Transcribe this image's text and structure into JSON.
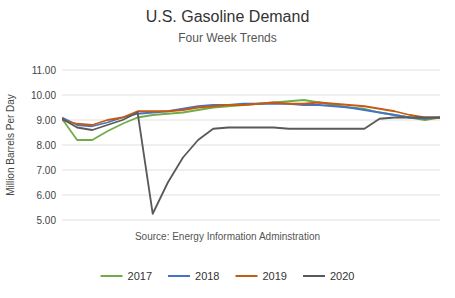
{
  "chart_data": {
    "type": "line",
    "title": "U.S. Gasoline Demand",
    "subtitle": "Four Week Trends",
    "y_label": "Million Barrels Per Day",
    "annotations": [
      "Source: Energy Information Adminstration"
    ],
    "categories": [
      null,
      null,
      null,
      null,
      null,
      null,
      null,
      null,
      null,
      null,
      null,
      null,
      null,
      null,
      null,
      null,
      null,
      null,
      null,
      null,
      null,
      null,
      null,
      null,
      null,
      null
    ],
    "series": [
      {
        "name": "2017",
        "color": "#70ad47",
        "values": [
          9.05,
          8.2,
          8.2,
          8.55,
          8.85,
          9.1,
          9.2,
          9.25,
          9.3,
          9.4,
          9.5,
          9.55,
          9.6,
          9.65,
          9.7,
          9.75,
          9.8,
          9.7,
          9.6,
          9.5,
          9.45,
          9.3,
          9.2,
          9.1,
          9.0,
          9.1
        ]
      },
      {
        "name": "2018",
        "color": "#4472c4",
        "values": [
          9.1,
          8.8,
          8.75,
          8.9,
          9.1,
          9.25,
          9.3,
          9.35,
          9.45,
          9.55,
          9.6,
          9.6,
          9.65,
          9.65,
          9.65,
          9.65,
          9.6,
          9.6,
          9.55,
          9.5,
          9.4,
          9.3,
          9.2,
          9.1,
          9.05,
          9.1
        ]
      },
      {
        "name": "2019",
        "color": "#c55a11",
        "values": [
          9.0,
          8.85,
          8.8,
          9.0,
          9.1,
          9.35,
          9.35,
          9.35,
          9.4,
          9.5,
          9.55,
          9.6,
          9.6,
          9.65,
          9.7,
          9.65,
          9.65,
          9.7,
          9.65,
          9.6,
          9.55,
          9.45,
          9.35,
          9.2,
          9.1,
          9.1
        ]
      },
      {
        "name": "2020",
        "color": "#595959",
        "values": [
          9.05,
          8.7,
          8.6,
          8.8,
          9.0,
          9.3,
          5.25,
          6.5,
          7.5,
          8.2,
          8.65,
          8.7,
          8.7,
          8.7,
          8.7,
          8.65,
          8.65,
          8.65,
          8.65,
          8.65,
          8.65,
          9.05,
          9.1,
          9.1,
          9.1,
          9.1
        ]
      }
    ],
    "ylim": [
      5.0,
      11.0
    ],
    "yticks": [
      {
        "value": 5.0,
        "label": "5.00"
      },
      {
        "value": 6.0,
        "label": "6.00"
      },
      {
        "value": 7.0,
        "label": "7.00"
      },
      {
        "value": 8.0,
        "label": "8.00"
      },
      {
        "value": 9.0,
        "label": "9.00"
      },
      {
        "value": 10.0,
        "label": "10.00"
      },
      {
        "value": 11.0,
        "label": "11.00"
      }
    ],
    "grid": true,
    "legend": "bottom",
    "tick_labels": "y"
  }
}
